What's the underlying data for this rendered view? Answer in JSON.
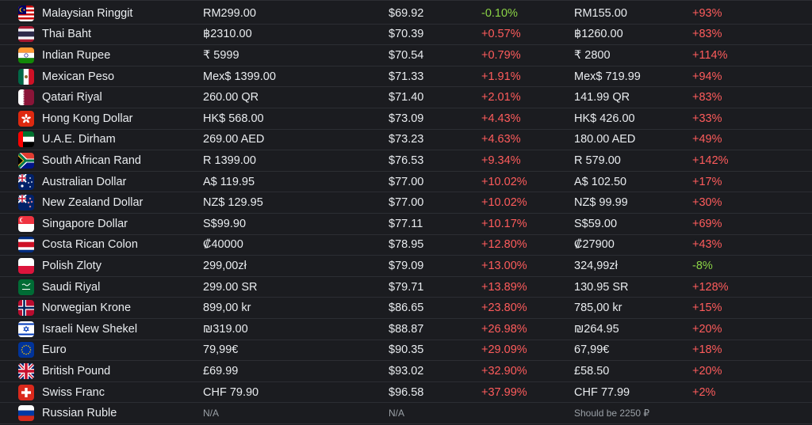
{
  "rows": [
    {
      "name": "Malaysian Ringgit",
      "price": "RM299.00",
      "usd": "$69.92",
      "diff": "-0.10%",
      "diff_dir": "neg",
      "rec": "RM155.00",
      "rdiff": "+93%",
      "rdiff_dir": "pos",
      "flag": "malaysia-flag-icon"
    },
    {
      "name": "Thai Baht",
      "price": "฿2310.00",
      "usd": "$70.39",
      "diff": "+0.57%",
      "diff_dir": "pos",
      "rec": "฿1260.00",
      "rdiff": "+83%",
      "rdiff_dir": "pos",
      "flag": "thailand-flag-icon"
    },
    {
      "name": "Indian Rupee",
      "price": "₹ 5999",
      "usd": "$70.54",
      "diff": "+0.79%",
      "diff_dir": "pos",
      "rec": "₹ 2800",
      "rdiff": "+114%",
      "rdiff_dir": "pos",
      "flag": "india-flag-icon"
    },
    {
      "name": "Mexican Peso",
      "price": "Mex$ 1399.00",
      "usd": "$71.33",
      "diff": "+1.91%",
      "diff_dir": "pos",
      "rec": "Mex$ 719.99",
      "rdiff": "+94%",
      "rdiff_dir": "pos",
      "flag": "mexico-flag-icon"
    },
    {
      "name": "Qatari Riyal",
      "price": "260.00 QR",
      "usd": "$71.40",
      "diff": "+2.01%",
      "diff_dir": "pos",
      "rec": "141.99 QR",
      "rdiff": "+83%",
      "rdiff_dir": "pos",
      "flag": "qatar-flag-icon"
    },
    {
      "name": "Hong Kong Dollar",
      "price": "HK$ 568.00",
      "usd": "$73.09",
      "diff": "+4.43%",
      "diff_dir": "pos",
      "rec": "HK$ 426.00",
      "rdiff": "+33%",
      "rdiff_dir": "pos",
      "flag": "hong-kong-flag-icon"
    },
    {
      "name": "U.A.E. Dirham",
      "price": "269.00 AED",
      "usd": "$73.23",
      "diff": "+4.63%",
      "diff_dir": "pos",
      "rec": "180.00 AED",
      "rdiff": "+49%",
      "rdiff_dir": "pos",
      "flag": "uae-flag-icon"
    },
    {
      "name": "South African Rand",
      "price": "R 1399.00",
      "usd": "$76.53",
      "diff": "+9.34%",
      "diff_dir": "pos",
      "rec": "R 579.00",
      "rdiff": "+142%",
      "rdiff_dir": "pos",
      "flag": "south-africa-flag-icon"
    },
    {
      "name": "Australian Dollar",
      "price": "A$ 119.95",
      "usd": "$77.00",
      "diff": "+10.02%",
      "diff_dir": "pos",
      "rec": "A$ 102.50",
      "rdiff": "+17%",
      "rdiff_dir": "pos",
      "flag": "australia-flag-icon"
    },
    {
      "name": "New Zealand Dollar",
      "price": "NZ$ 129.95",
      "usd": "$77.00",
      "diff": "+10.02%",
      "diff_dir": "pos",
      "rec": "NZ$ 99.99",
      "rdiff": "+30%",
      "rdiff_dir": "pos",
      "flag": "new-zealand-flag-icon"
    },
    {
      "name": "Singapore Dollar",
      "price": "S$99.90",
      "usd": "$77.11",
      "diff": "+10.17%",
      "diff_dir": "pos",
      "rec": "S$59.00",
      "rdiff": "+69%",
      "rdiff_dir": "pos",
      "flag": "singapore-flag-icon"
    },
    {
      "name": "Costa Rican Colon",
      "price": "₡40000",
      "usd": "$78.95",
      "diff": "+12.80%",
      "diff_dir": "pos",
      "rec": "₡27900",
      "rdiff": "+43%",
      "rdiff_dir": "pos",
      "flag": "costa-rica-flag-icon"
    },
    {
      "name": "Polish Zloty",
      "price": "299,00zł",
      "usd": "$79.09",
      "diff": "+13.00%",
      "diff_dir": "pos",
      "rec": "324,99zł",
      "rdiff": "-8%",
      "rdiff_dir": "neg",
      "flag": "poland-flag-icon"
    },
    {
      "name": "Saudi Riyal",
      "price": "299.00 SR",
      "usd": "$79.71",
      "diff": "+13.89%",
      "diff_dir": "pos",
      "rec": "130.95 SR",
      "rdiff": "+128%",
      "rdiff_dir": "pos",
      "flag": "saudi-arabia-flag-icon"
    },
    {
      "name": "Norwegian Krone",
      "price": "899,00 kr",
      "usd": "$86.65",
      "diff": "+23.80%",
      "diff_dir": "pos",
      "rec": "785,00 kr",
      "rdiff": "+15%",
      "rdiff_dir": "pos",
      "flag": "norway-flag-icon"
    },
    {
      "name": "Israeli New Shekel",
      "price": "₪319.00",
      "usd": "$88.87",
      "diff": "+26.98%",
      "diff_dir": "pos",
      "rec": "₪264.95",
      "rdiff": "+20%",
      "rdiff_dir": "pos",
      "flag": "israel-flag-icon"
    },
    {
      "name": "Euro",
      "price": "79,99€",
      "usd": "$90.35",
      "diff": "+29.09%",
      "diff_dir": "pos",
      "rec": "67,99€",
      "rdiff": "+18%",
      "rdiff_dir": "pos",
      "flag": "eu-flag-icon"
    },
    {
      "name": "British Pound",
      "price": "£69.99",
      "usd": "$93.02",
      "diff": "+32.90%",
      "diff_dir": "pos",
      "rec": "£58.50",
      "rdiff": "+20%",
      "rdiff_dir": "pos",
      "flag": "uk-flag-icon"
    },
    {
      "name": "Swiss Franc",
      "price": "CHF 79.90",
      "usd": "$96.58",
      "diff": "+37.99%",
      "diff_dir": "pos",
      "rec": "CHF 77.99",
      "rdiff": "+2%",
      "rdiff_dir": "pos",
      "flag": "switzerland-flag-icon"
    },
    {
      "name": "Russian Ruble",
      "price": "N/A",
      "usd": "N/A",
      "diff": "",
      "diff_dir": "na",
      "rec": "Should be 2250 ₽",
      "rdiff": "",
      "rdiff_dir": "na",
      "flag": "russia-flag-icon",
      "na": true
    }
  ],
  "colors": {
    "background": "#1b1c20",
    "positive": "#ff5c5c",
    "negative": "#8bd346",
    "muted": "#9aa0a6"
  }
}
